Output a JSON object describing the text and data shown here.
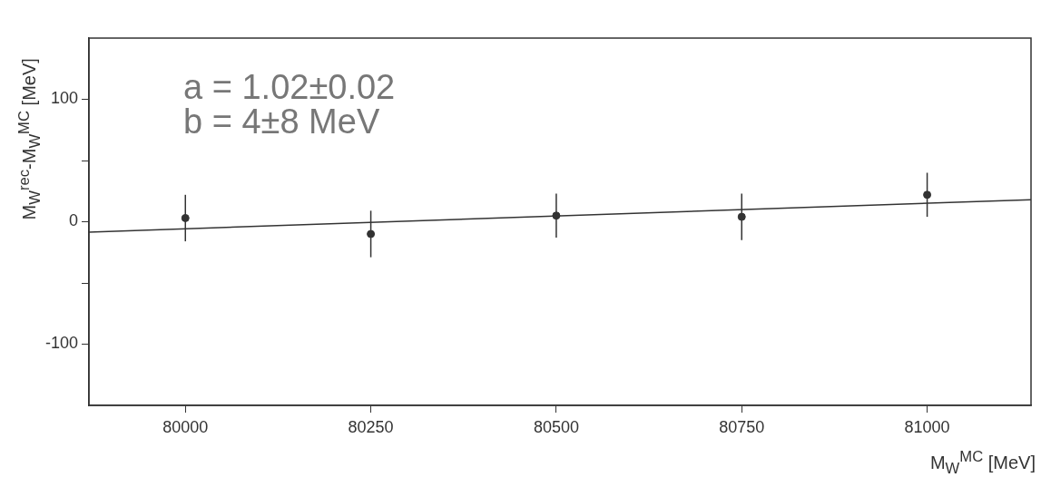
{
  "chart_data": {
    "type": "scatter",
    "xlabel": "M$_{W}$$^{MC}$ [MeV]",
    "ylabel": "M$_{W}$$^{rec}$-M$_{W}$$^{MC}$ [MeV]",
    "annotations": [
      "a = 1.02±0.02",
      "b = 4±8 MeV"
    ],
    "xlim": [
      79870,
      81140
    ],
    "xticks": [
      80000,
      80250,
      80500,
      80750,
      81000
    ],
    "ylim": [
      -150,
      150
    ],
    "yticks": [
      -100,
      {
        "value": -50,
        "label": null
      },
      0,
      {
        "value": 50,
        "label": null
      },
      100
    ],
    "marker": "circle",
    "series": [
      {
        "color": "#333333",
        "x": [
          80000,
          80250,
          80500,
          80750,
          81000
        ],
        "values": [
          3,
          -10,
          5,
          4,
          22
        ],
        "errors": [
          19,
          19,
          18,
          19,
          18
        ]
      },
      {
        "type": "line",
        "marker": "none",
        "color": "#333333",
        "x": [
          79870,
          81140
        ],
        "values": [
          -8.5,
          18
        ]
      }
    ]
  }
}
